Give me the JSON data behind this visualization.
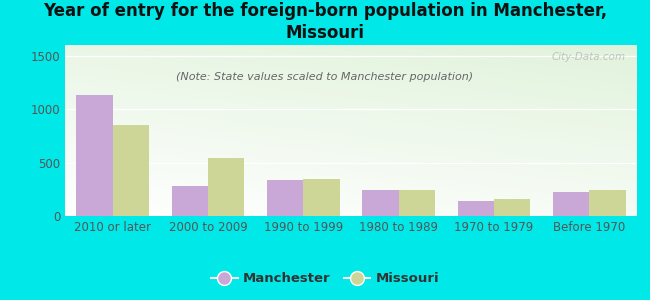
{
  "categories": [
    "2010 or later",
    "2000 to 2009",
    "1990 to 1999",
    "1980 to 1989",
    "1970 to 1979",
    "Before 1970"
  ],
  "manchester_values": [
    1130,
    280,
    335,
    240,
    140,
    220
  ],
  "missouri_values": [
    850,
    540,
    345,
    240,
    160,
    240
  ],
  "manchester_color": "#c9a8d8",
  "missouri_color": "#cdd696",
  "title": "Year of entry for the foreign-born population in Manchester,\nMissouri",
  "subtitle": "(Note: State values scaled to Manchester population)",
  "ylim": [
    0,
    1600
  ],
  "yticks": [
    0,
    500,
    1000,
    1500
  ],
  "background_color": "#00e8e8",
  "watermark": "City-Data.com",
  "legend_manchester": "Manchester",
  "legend_missouri": "Missouri",
  "title_fontsize": 12,
  "subtitle_fontsize": 8,
  "axis_label_fontsize": 8.5,
  "bar_width": 0.38
}
